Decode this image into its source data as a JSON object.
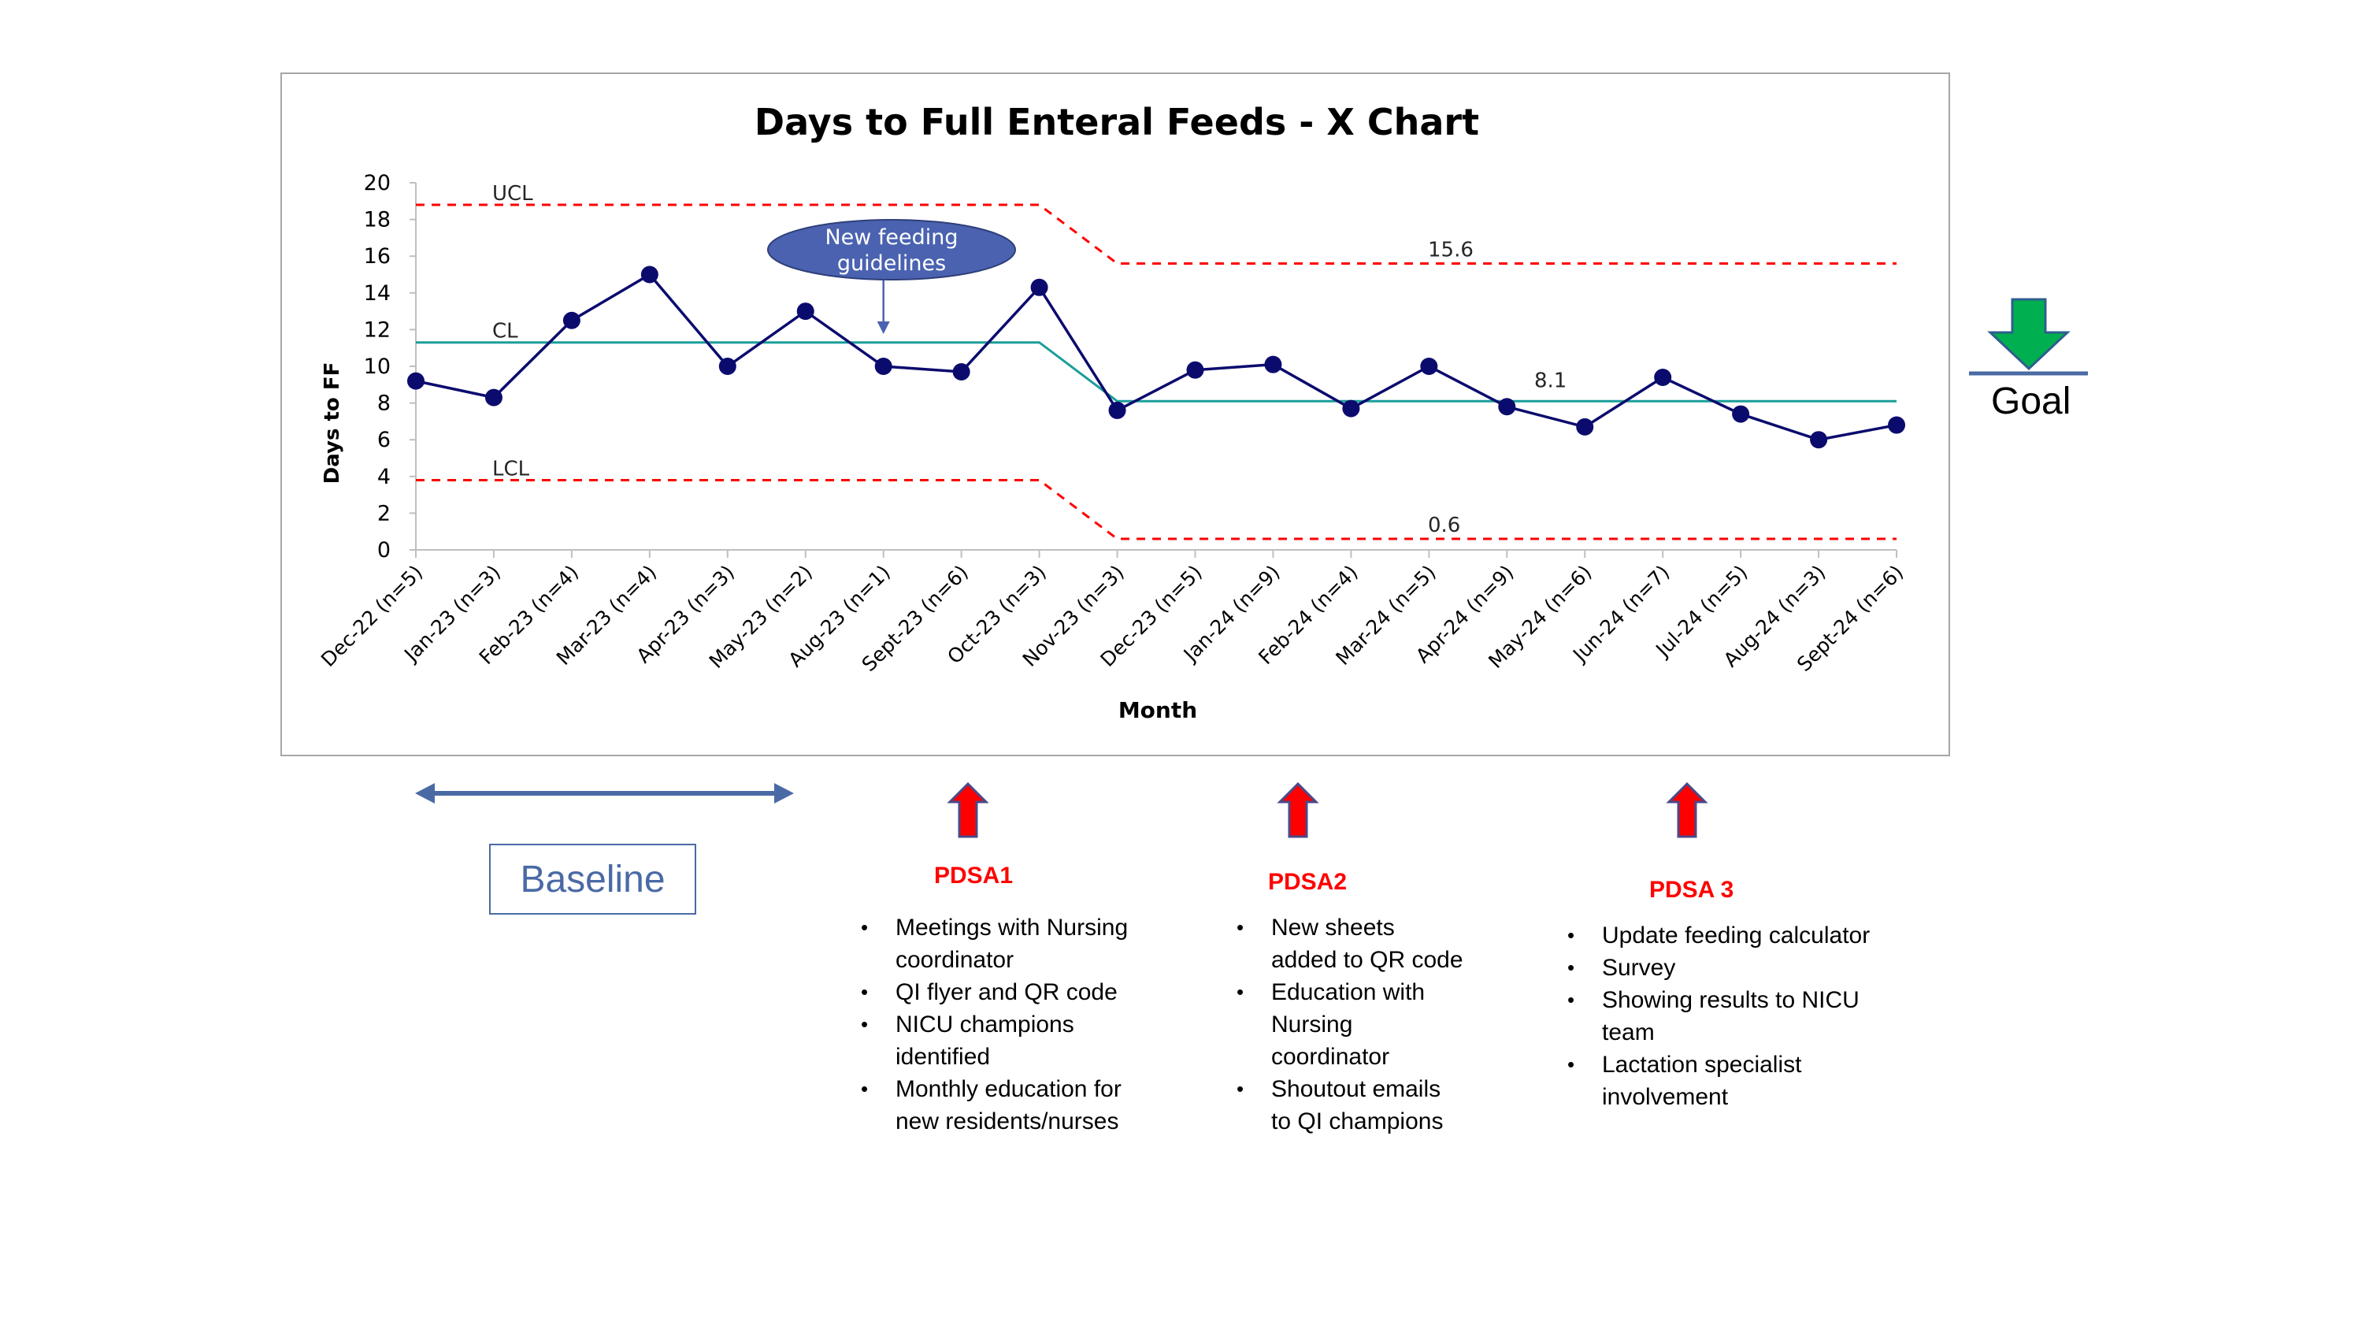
{
  "chart_data": {
    "type": "line",
    "title": "Days to Full Enteral Feeds - X Chart",
    "xlabel": "Month",
    "ylabel": "Days to FF",
    "ylim": [
      0,
      20
    ],
    "yticks": [
      0,
      2,
      4,
      6,
      8,
      10,
      12,
      14,
      16,
      18,
      20
    ],
    "categories": [
      "Dec-22 (n=5)",
      "Jan-23 (n=3)",
      "Feb-23 (n=4)",
      "Mar-23 (n=4)",
      "Apr-23 (n=3)",
      "May-23 (n=2)",
      "Aug-23 (n=1)",
      "Sept-23 (n=6)",
      "Oct-23 (n=3)",
      "Nov-23 (n=3)",
      "Dec-23 (n=5)",
      "Jan-24 (n=9)",
      "Feb-24 (n=4)",
      "Mar-24 (n=5)",
      "Apr-24 (n=9)",
      "May-24 (n=6)",
      "Jun-24 (n=7)",
      "Jul-24 (n=5)",
      "Aug-24 (n=3)",
      "Sept-24 (n=6)"
    ],
    "values": [
      9.2,
      8.3,
      12.5,
      15.0,
      10.0,
      13.0,
      10.0,
      9.7,
      14.3,
      7.6,
      9.8,
      10.1,
      7.7,
      10.0,
      7.8,
      6.7,
      9.4,
      7.4,
      6.0,
      6.8
    ],
    "series_color": "#0b0b6e",
    "control_limits": {
      "ucl": [
        18.8,
        18.8,
        18.8,
        18.8,
        18.8,
        18.8,
        18.8,
        18.8,
        18.8,
        15.6,
        15.6,
        15.6,
        15.6,
        15.6,
        15.6,
        15.6,
        15.6,
        15.6,
        15.6,
        15.6
      ],
      "cl": [
        11.3,
        11.3,
        11.3,
        11.3,
        11.3,
        11.3,
        11.3,
        11.3,
        11.3,
        8.1,
        8.1,
        8.1,
        8.1,
        8.1,
        8.1,
        8.1,
        8.1,
        8.1,
        8.1,
        8.1
      ],
      "lcl": [
        3.8,
        3.8,
        3.8,
        3.8,
        3.8,
        3.8,
        3.8,
        3.8,
        3.8,
        0.6,
        0.6,
        0.6,
        0.6,
        0.6,
        0.6,
        0.6,
        0.6,
        0.6,
        0.6,
        0.6
      ],
      "ucl_label": "UCL",
      "cl_label": "CL",
      "lcl_label": "LCL",
      "ucl_value_label": "15.6",
      "cl_value_label": "8.1",
      "lcl_value_label": "0.6",
      "limit_color": "#ff0000",
      "center_color": "#1a9e9a"
    },
    "annotation": {
      "text_line1": "New feeding",
      "text_line2": "guidelines",
      "category_index": 6,
      "fill": "#4a62b0"
    },
    "grid": false,
    "legend": "none"
  },
  "annotations": {
    "baseline_label": "Baseline",
    "goal_label": "Goal",
    "pdsa": [
      {
        "title": "PDSA1",
        "items": [
          "Meetings with Nursing coordinator",
          "QI flyer and QR code",
          "NICU champions identified",
          "Monthly education for new residents/nurses"
        ]
      },
      {
        "title": "PDSA2",
        "items": [
          "New sheets added to QR code",
          "Education with Nursing coordinator",
          "Shoutout emails to QI champions"
        ]
      },
      {
        "title": "PDSA 3",
        "items": [
          "Update feeding calculator",
          "Survey",
          "Showing results to NICU team",
          "Lactation specialist involvement"
        ]
      }
    ],
    "colors": {
      "baseline": "#4a6aa5",
      "pdsa_arrow": "#ff0000",
      "pdsa_arrow_outline": "#4a4a8a",
      "goal_arrow": "#00b050",
      "goal_line": "#4a6aa5"
    }
  }
}
